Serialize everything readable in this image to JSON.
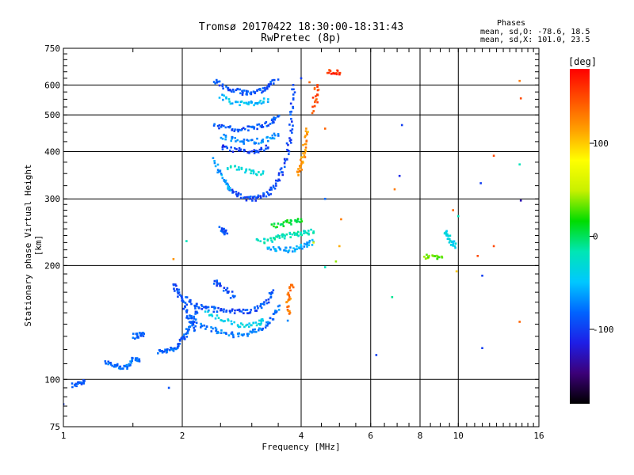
{
  "chart_data": {
    "type": "scatter",
    "title": "Tromsø 20170422 18:30:00-18:31:43",
    "subtitle": "RwPretec (8p)",
    "xlabel": "Frequency [MHz]",
    "ylabel": "Stationary phase Virtual Height [km]",
    "x_scale": "log",
    "y_scale": "log",
    "xlim": [
      1,
      16
    ],
    "ylim": [
      75,
      750
    ],
    "x_ticks": [
      1,
      2,
      4,
      6,
      8,
      10,
      16
    ],
    "x_tick_labels": [
      "1",
      "2",
      "4",
      "6",
      "8",
      "10",
      "16"
    ],
    "y_ticks": [
      75,
      100,
      200,
      300,
      400,
      500,
      600,
      750
    ],
    "y_tick_labels": [
      "75",
      "100",
      "200",
      "300",
      "400",
      "500",
      "600",
      "750"
    ],
    "grid": true,
    "colorbar": {
      "label": "[deg]",
      "range": [
        -180,
        180
      ],
      "ticks": [
        100,
        0,
        -100
      ],
      "tick_labels": [
        "100",
        "0",
        "-100"
      ],
      "stops": [
        "#000000",
        "#3c0078",
        "#1e1ee6",
        "#0064ff",
        "#00c8ff",
        "#00e6b4",
        "#00dc00",
        "#c8f000",
        "#ffff00",
        "#ffa000",
        "#ff5000",
        "#ff0000"
      ]
    },
    "phases": {
      "title": "Phases",
      "o_line": "mean, sd,O: -78.6, 18.5",
      "x_line": "mean, sd,X: 101.0, 23.5"
    },
    "traces": [
      {
        "points": [
          [
            1.05,
            96
          ],
          [
            1.1,
            98
          ],
          [
            1.13,
            99
          ]
        ],
        "phase": -90
      },
      {
        "points": [
          [
            1.28,
            112
          ],
          [
            1.33,
            109
          ],
          [
            1.4,
            107
          ],
          [
            1.45,
            108
          ],
          [
            1.48,
            111
          ],
          [
            1.52,
            114
          ],
          [
            1.55,
            112
          ]
        ],
        "phase": -80
      },
      {
        "points": [
          [
            1.5,
            130
          ],
          [
            1.55,
            131
          ],
          [
            1.6,
            132
          ]
        ],
        "phase": -85
      },
      {
        "points": [
          [
            1.75,
            118
          ],
          [
            1.8,
            119
          ],
          [
            1.88,
            120
          ],
          [
            1.95,
            122
          ],
          [
            2.0,
            128
          ],
          [
            2.05,
            133
          ],
          [
            2.1,
            139
          ],
          [
            2.15,
            146
          ],
          [
            2.2,
            155
          ]
        ],
        "phase": -85
      },
      {
        "points": [
          [
            1.9,
            180
          ],
          [
            1.95,
            170
          ],
          [
            2.0,
            162
          ],
          [
            2.05,
            152
          ],
          [
            2.1,
            142
          ],
          [
            2.15,
            135
          ]
        ],
        "phase": -90
      },
      {
        "points": [
          [
            2.05,
            165
          ],
          [
            2.15,
            157
          ],
          [
            2.3,
            155
          ],
          [
            2.45,
            153
          ],
          [
            2.6,
            152
          ],
          [
            2.8,
            151
          ],
          [
            3.0,
            152
          ],
          [
            3.15,
            155
          ],
          [
            3.3,
            162
          ],
          [
            3.4,
            172
          ]
        ],
        "phase": -90
      },
      {
        "points": [
          [
            2.2,
            140
          ],
          [
            2.35,
            136
          ],
          [
            2.5,
            133
          ],
          [
            2.7,
            131
          ],
          [
            2.9,
            132
          ],
          [
            3.1,
            134
          ],
          [
            3.25,
            139
          ],
          [
            3.4,
            146
          ],
          [
            3.5,
            156
          ]
        ],
        "phase": -75
      },
      {
        "points": [
          [
            2.3,
            150
          ],
          [
            2.5,
            144
          ],
          [
            2.7,
            140
          ],
          [
            2.9,
            139
          ],
          [
            3.1,
            141
          ],
          [
            3.2,
            143
          ]
        ],
        "phase": -40
      },
      {
        "points": [
          [
            2.4,
            182
          ],
          [
            2.5,
            178
          ],
          [
            2.6,
            172
          ],
          [
            2.7,
            165
          ]
        ],
        "phase": -90
      },
      {
        "points": [
          [
            2.5,
            250
          ],
          [
            2.55,
            246
          ],
          [
            2.6,
            243
          ]
        ],
        "phase": -90
      },
      {
        "points": [
          [
            3.1,
            232
          ],
          [
            3.3,
            233
          ],
          [
            3.5,
            237
          ],
          [
            3.7,
            240
          ],
          [
            3.9,
            242
          ],
          [
            4.1,
            244
          ],
          [
            4.3,
            246
          ]
        ],
        "phase": -20
      },
      {
        "points": [
          [
            3.3,
            224
          ],
          [
            3.5,
            221
          ],
          [
            3.7,
            220
          ],
          [
            3.9,
            222
          ],
          [
            4.1,
            226
          ],
          [
            4.3,
            231
          ]
        ],
        "phase": -60
      },
      {
        "points": [
          [
            3.4,
            255
          ],
          [
            3.6,
            258
          ],
          [
            3.8,
            261
          ],
          [
            4.0,
            265
          ]
        ],
        "phase": 10
      },
      {
        "points": [
          [
            2.4,
            620
          ],
          [
            2.55,
            595
          ],
          [
            2.7,
            580
          ],
          [
            2.85,
            572
          ],
          [
            3.0,
            573
          ],
          [
            3.15,
            580
          ],
          [
            3.3,
            595
          ],
          [
            3.4,
            618
          ]
        ],
        "phase": -90
      },
      {
        "points": [
          [
            2.5,
            560
          ],
          [
            2.7,
            540
          ],
          [
            2.9,
            535
          ],
          [
            3.1,
            540
          ],
          [
            3.3,
            550
          ]
        ],
        "phase": -50
      },
      {
        "points": [
          [
            2.4,
            470
          ],
          [
            2.6,
            460
          ],
          [
            2.8,
            458
          ],
          [
            3.0,
            462
          ],
          [
            3.2,
            468
          ],
          [
            3.4,
            480
          ],
          [
            3.5,
            495
          ]
        ],
        "phase": -90
      },
      {
        "points": [
          [
            2.5,
            440
          ],
          [
            2.7,
            430
          ],
          [
            2.9,
            425
          ],
          [
            3.1,
            426
          ],
          [
            3.3,
            432
          ],
          [
            3.5,
            445
          ]
        ],
        "phase": -70
      },
      {
        "points": [
          [
            2.5,
            410
          ],
          [
            2.7,
            404
          ],
          [
            2.9,
            400
          ],
          [
            3.1,
            402
          ],
          [
            3.3,
            410
          ]
        ],
        "phase": -100
      },
      {
        "points": [
          [
            2.6,
            365
          ],
          [
            2.8,
            358
          ],
          [
            3.0,
            353
          ],
          [
            3.2,
            350
          ]
        ],
        "phase": -30
      },
      {
        "points": [
          [
            2.6,
            320
          ],
          [
            2.75,
            307
          ],
          [
            2.9,
            300
          ],
          [
            3.05,
            300
          ],
          [
            3.2,
            305
          ],
          [
            3.35,
            315
          ],
          [
            3.5,
            335
          ],
          [
            3.6,
            360
          ],
          [
            3.7,
            400
          ],
          [
            3.75,
            450
          ],
          [
            3.8,
            520
          ],
          [
            3.82,
            600
          ]
        ],
        "phase": -95
      },
      {
        "points": [
          [
            2.4,
            380
          ],
          [
            2.5,
            350
          ],
          [
            2.6,
            330
          ],
          [
            2.65,
            316
          ]
        ],
        "phase": -60
      },
      {
        "points": [
          [
            3.9,
            345
          ],
          [
            4.0,
            365
          ],
          [
            4.05,
            390
          ],
          [
            4.1,
            420
          ],
          [
            4.12,
            460
          ]
        ],
        "phase": 120
      },
      {
        "points": [
          [
            4.3,
            510
          ],
          [
            4.35,
            560
          ],
          [
            4.4,
            600
          ]
        ],
        "phase": 150
      },
      {
        "points": [
          [
            4.7,
            650
          ],
          [
            4.85,
            648
          ],
          [
            5.0,
            645
          ]
        ],
        "phase": 160
      },
      {
        "points": [
          [
            3.8,
            180
          ],
          [
            3.75,
            170
          ],
          [
            3.7,
            160
          ],
          [
            3.75,
            150
          ]
        ],
        "phase": 130
      },
      {
        "points": [
          [
            9.3,
            245
          ],
          [
            9.4,
            240
          ],
          [
            9.6,
            230
          ],
          [
            9.8,
            225
          ]
        ],
        "phase": -40
      },
      {
        "points": [
          [
            8.3,
            210
          ],
          [
            8.6,
            212
          ],
          [
            9.1,
            210
          ]
        ],
        "phase": 30
      }
    ],
    "points": [
      {
        "x": 3.5,
        "y": 620,
        "phase": -90
      },
      {
        "x": 4.0,
        "y": 625,
        "phase": -100
      },
      {
        "x": 4.2,
        "y": 610,
        "phase": 140
      },
      {
        "x": 4.4,
        "y": 540,
        "phase": 160
      },
      {
        "x": 4.6,
        "y": 460,
        "phase": 140
      },
      {
        "x": 7.2,
        "y": 470,
        "phase": -100
      },
      {
        "x": 7.1,
        "y": 345,
        "phase": -110
      },
      {
        "x": 6.9,
        "y": 318,
        "phase": 130
      },
      {
        "x": 11.4,
        "y": 330,
        "phase": -100
      },
      {
        "x": 12.3,
        "y": 390,
        "phase": 150
      },
      {
        "x": 14.3,
        "y": 370,
        "phase": -20
      },
      {
        "x": 14.4,
        "y": 297,
        "phase": -130
      },
      {
        "x": 14.3,
        "y": 615,
        "phase": 130
      },
      {
        "x": 14.4,
        "y": 553,
        "phase": 150
      },
      {
        "x": 10.0,
        "y": 270,
        "phase": -20
      },
      {
        "x": 9.7,
        "y": 280,
        "phase": 140
      },
      {
        "x": 11.2,
        "y": 212,
        "phase": 150
      },
      {
        "x": 12.3,
        "y": 225,
        "phase": 150
      },
      {
        "x": 9.9,
        "y": 193,
        "phase": 100
      },
      {
        "x": 11.5,
        "y": 188,
        "phase": -100
      },
      {
        "x": 6.8,
        "y": 165,
        "phase": -10
      },
      {
        "x": 6.2,
        "y": 116,
        "phase": -100
      },
      {
        "x": 11.5,
        "y": 121,
        "phase": -100
      },
      {
        "x": 14.3,
        "y": 142,
        "phase": 140
      },
      {
        "x": 4.9,
        "y": 205,
        "phase": 40
      },
      {
        "x": 4.6,
        "y": 198,
        "phase": -20
      },
      {
        "x": 5.0,
        "y": 225,
        "phase": 110
      },
      {
        "x": 5.05,
        "y": 265,
        "phase": 130
      },
      {
        "x": 4.6,
        "y": 300,
        "phase": -80
      },
      {
        "x": 4.3,
        "y": 230,
        "phase": 60
      },
      {
        "x": 1.85,
        "y": 95,
        "phase": -90
      },
      {
        "x": 1.0,
        "y": 86,
        "phase": -100
      },
      {
        "x": 2.05,
        "y": 232,
        "phase": -20
      },
      {
        "x": 1.9,
        "y": 208,
        "phase": 120
      },
      {
        "x": 3.7,
        "y": 143,
        "phase": -70
      }
    ]
  }
}
